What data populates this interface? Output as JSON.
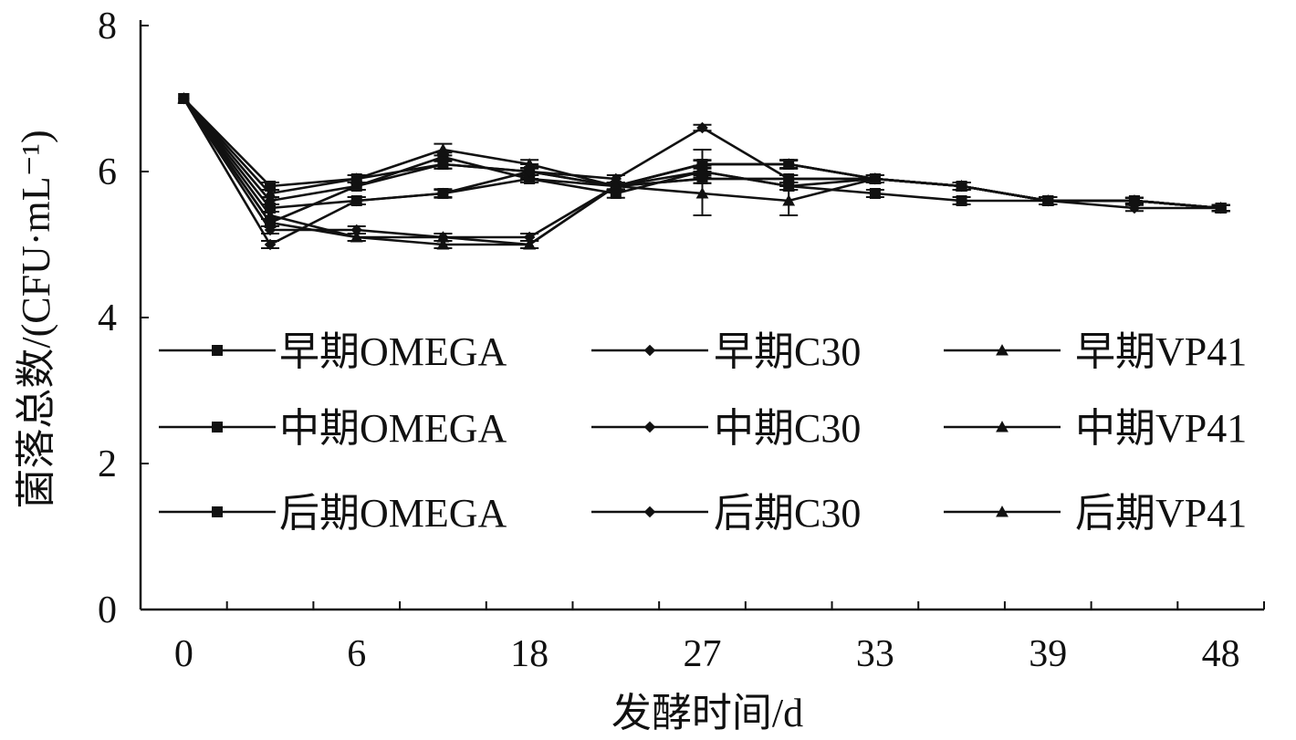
{
  "chart_data": {
    "type": "line",
    "xlabel": "发酵时间/d",
    "ylabel": "菌落总数/(CFU·mL⁻¹)",
    "ylim": [
      0,
      8
    ],
    "yticks": [
      "0",
      "2",
      "4",
      "6",
      "8"
    ],
    "xticks": [
      "0",
      "6",
      "18",
      "27",
      "33",
      "39",
      "48"
    ],
    "x_tick_positions": [
      0,
      2,
      4,
      6,
      8,
      10,
      12
    ],
    "x_range": [
      -0.5,
      12.5
    ],
    "grid": false,
    "legend_position": "center",
    "colors": {
      "line": "#111111",
      "background": "#ffffff"
    },
    "series": [
      {
        "name": "早期OMEGA",
        "marker": "square",
        "points": [
          [
            0,
            7.0
          ],
          [
            1,
            5.3
          ],
          [
            2,
            5.8
          ],
          [
            3,
            6.2
          ],
          [
            4,
            5.9
          ],
          [
            5,
            5.7
          ],
          [
            6,
            6.0
          ],
          [
            7,
            5.8
          ],
          [
            8,
            5.7
          ],
          [
            9,
            5.6
          ],
          [
            10,
            5.6
          ],
          [
            11,
            5.6
          ],
          [
            12,
            5.5
          ]
        ],
        "error": [
          0,
          0.05,
          0.05,
          0.06,
          0.05,
          0.06,
          0.08,
          0.05,
          0.05,
          0.05,
          0.05,
          0.04,
          0.04
        ]
      },
      {
        "name": "早期C30",
        "marker": "diamond",
        "points": [
          [
            0,
            7.0
          ],
          [
            1,
            5.2
          ],
          [
            2,
            5.2
          ],
          [
            3,
            5.1
          ],
          [
            4,
            5.1
          ],
          [
            5,
            5.8
          ],
          [
            6,
            5.9
          ],
          [
            7,
            5.9
          ],
          [
            8,
            5.9
          ],
          [
            9,
            5.8
          ],
          [
            10,
            5.6
          ],
          [
            11,
            5.6
          ],
          [
            12,
            5.5
          ]
        ],
        "error": [
          0,
          0.05,
          0.05,
          0.05,
          0.05,
          0.05,
          0.06,
          0.05,
          0.05,
          0.05,
          0.05,
          0.04,
          0.04
        ]
      },
      {
        "name": "早期VP41",
        "marker": "triangle",
        "points": [
          [
            0,
            7.0
          ],
          [
            1,
            5.4
          ],
          [
            2,
            5.1
          ],
          [
            3,
            5.0
          ],
          [
            4,
            5.0
          ],
          [
            5,
            5.8
          ],
          [
            6,
            5.7
          ],
          [
            7,
            5.6
          ],
          [
            8,
            5.9
          ],
          [
            9,
            5.8
          ],
          [
            10,
            5.6
          ],
          [
            11,
            5.6
          ],
          [
            12,
            5.5
          ]
        ],
        "error": [
          0,
          0.05,
          0.05,
          0.05,
          0.05,
          0.05,
          0.3,
          0.2,
          0.05,
          0.05,
          0.05,
          0.04,
          0.04
        ]
      },
      {
        "name": "中期OMEGA",
        "marker": "square",
        "points": [
          [
            0,
            7.0
          ],
          [
            1,
            5.5
          ],
          [
            2,
            5.6
          ],
          [
            3,
            5.7
          ],
          [
            4,
            5.9
          ],
          [
            5,
            5.8
          ],
          [
            6,
            5.9
          ],
          [
            7,
            5.9
          ],
          [
            8,
            5.9
          ],
          [
            9,
            5.8
          ],
          [
            10,
            5.6
          ],
          [
            11,
            5.6
          ],
          [
            12,
            5.5
          ]
        ],
        "error": [
          0,
          0.05,
          0.05,
          0.06,
          0.05,
          0.05,
          0.06,
          0.05,
          0.05,
          0.05,
          0.05,
          0.04,
          0.04
        ]
      },
      {
        "name": "中期C30",
        "marker": "diamond",
        "points": [
          [
            0,
            7.0
          ],
          [
            1,
            5.6
          ],
          [
            2,
            5.8
          ],
          [
            3,
            6.1
          ],
          [
            4,
            6.0
          ],
          [
            5,
            5.8
          ],
          [
            6,
            6.1
          ],
          [
            7,
            6.1
          ],
          [
            8,
            5.9
          ],
          [
            9,
            5.8
          ],
          [
            10,
            5.6
          ],
          [
            11,
            5.5
          ],
          [
            12,
            5.5
          ]
        ],
        "error": [
          0,
          0.05,
          0.05,
          0.06,
          0.1,
          0.05,
          0.2,
          0.06,
          0.05,
          0.05,
          0.05,
          0.04,
          0.04
        ]
      },
      {
        "name": "中期VP41",
        "marker": "triangle",
        "points": [
          [
            0,
            7.0
          ],
          [
            1,
            5.3
          ],
          [
            2,
            5.1
          ],
          [
            3,
            5.1
          ],
          [
            4,
            5.0
          ],
          [
            5,
            5.8
          ],
          [
            6,
            6.1
          ],
          [
            7,
            6.1
          ],
          [
            8,
            5.9
          ],
          [
            9,
            5.8
          ],
          [
            10,
            5.6
          ],
          [
            11,
            5.6
          ],
          [
            12,
            5.5
          ]
        ],
        "error": [
          0,
          0.05,
          0.05,
          0.05,
          0.05,
          0.05,
          0.06,
          0.06,
          0.05,
          0.05,
          0.05,
          0.04,
          0.04
        ]
      },
      {
        "name": "后期OMEGA",
        "marker": "square",
        "points": [
          [
            0,
            7.0
          ],
          [
            1,
            5.8
          ],
          [
            2,
            5.9
          ],
          [
            3,
            6.1
          ],
          [
            4,
            6.0
          ],
          [
            5,
            5.8
          ],
          [
            6,
            6.1
          ],
          [
            7,
            6.1
          ],
          [
            8,
            5.9
          ],
          [
            9,
            5.8
          ],
          [
            10,
            5.6
          ],
          [
            11,
            5.6
          ],
          [
            12,
            5.5
          ]
        ],
        "error": [
          0,
          0.05,
          0.05,
          0.06,
          0.05,
          0.05,
          0.05,
          0.05,
          0.05,
          0.05,
          0.05,
          0.04,
          0.04
        ]
      },
      {
        "name": "后期C30",
        "marker": "diamond",
        "points": [
          [
            0,
            7.0
          ],
          [
            1,
            5.0
          ],
          [
            2,
            5.6
          ],
          [
            3,
            5.7
          ],
          [
            4,
            6.0
          ],
          [
            5,
            5.9
          ],
          [
            6,
            6.6
          ],
          [
            7,
            5.9
          ],
          [
            8,
            5.9
          ],
          [
            9,
            5.8
          ],
          [
            10,
            5.6
          ],
          [
            11,
            5.6
          ],
          [
            12,
            5.5
          ]
        ],
        "error": [
          0,
          0.05,
          0.05,
          0.05,
          0.05,
          0.05,
          0.04,
          0.05,
          0.05,
          0.05,
          0.05,
          0.04,
          0.04
        ]
      },
      {
        "name": "后期VP41",
        "marker": "triangle",
        "points": [
          [
            0,
            7.0
          ],
          [
            1,
            5.7
          ],
          [
            2,
            5.9
          ],
          [
            3,
            6.3
          ],
          [
            4,
            6.1
          ],
          [
            5,
            5.8
          ],
          [
            6,
            6.0
          ],
          [
            7,
            5.8
          ],
          [
            8,
            5.9
          ],
          [
            9,
            5.8
          ],
          [
            10,
            5.6
          ],
          [
            11,
            5.6
          ],
          [
            12,
            5.5
          ]
        ],
        "error": [
          0,
          0.05,
          0.05,
          0.08,
          0.06,
          0.05,
          0.05,
          0.05,
          0.05,
          0.05,
          0.05,
          0.04,
          0.04
        ]
      }
    ]
  }
}
